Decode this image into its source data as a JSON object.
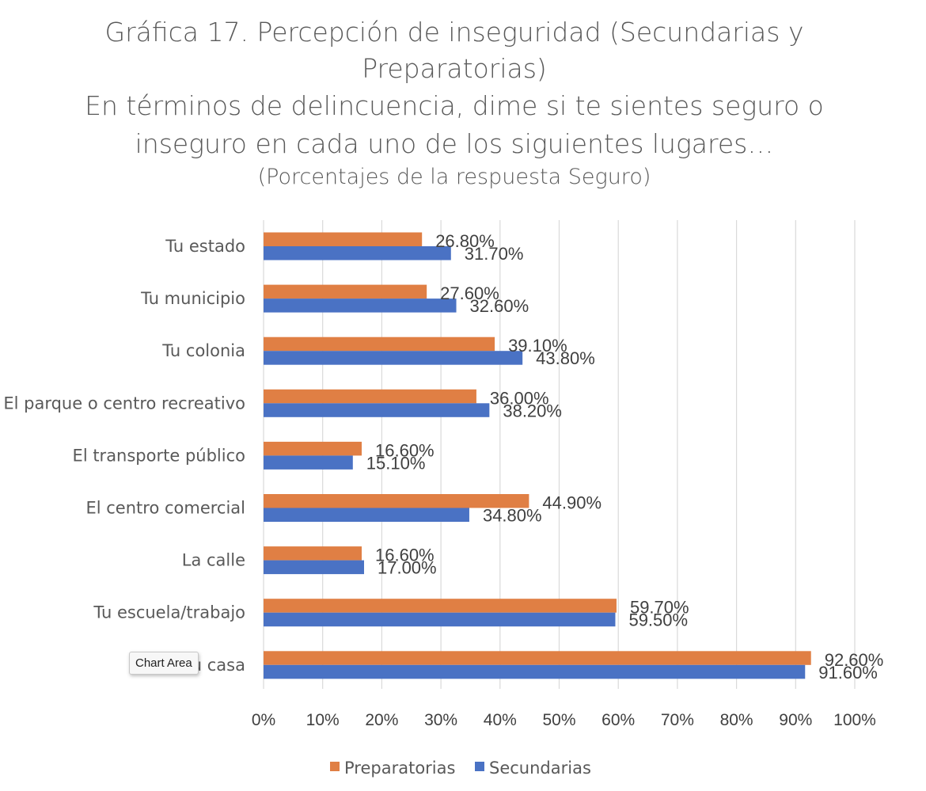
{
  "chart_data": {
    "type": "bar",
    "orientation": "horizontal",
    "title": [
      "Gráfica 17. Percepción de inseguridad (Secundarias y",
      "Preparatorias)",
      "En términos de delincuencia, dime si te sientes seguro o",
      "inseguro en cada uno de los siguientes lugares…"
    ],
    "subtitle": "(Porcentajes de la respuesta Seguro)",
    "categories": [
      "Tu estado",
      "Tu municipio",
      "Tu colonia",
      "El parque o centro recreativo",
      "El transporte público",
      "El centro comercial",
      "La calle",
      "Tu escuela/trabajo",
      "Tu casa"
    ],
    "series": [
      {
        "name": "Preparatorias",
        "color": "#e07f44",
        "values": [
          26.8,
          27.6,
          39.1,
          36.0,
          16.6,
          44.9,
          16.6,
          59.7,
          92.6
        ],
        "labels": [
          "26.80%",
          "27.60%",
          "39.10%",
          "36.00%",
          "16.60%",
          "44.90%",
          "16.60%",
          "59.70%",
          "92.60%"
        ]
      },
      {
        "name": "Secundarias",
        "color": "#4a72c4",
        "values": [
          31.7,
          32.6,
          43.8,
          38.2,
          15.1,
          34.8,
          17.0,
          59.5,
          91.6
        ],
        "labels": [
          "31.70%",
          "32.60%",
          "43.80%",
          "38.20%",
          "15.10%",
          "34.80%",
          "17.00%",
          "59.50%",
          "91.60%"
        ]
      }
    ],
    "xlim": [
      0,
      100
    ],
    "x_ticks": [
      0,
      10,
      20,
      30,
      40,
      50,
      60,
      70,
      80,
      90,
      100
    ],
    "x_tick_labels": [
      "0%",
      "10%",
      "20%",
      "30%",
      "40%",
      "50%",
      "60%",
      "70%",
      "80%",
      "90%",
      "100%"
    ],
    "grid": true,
    "gridline_color": "#d9d9d9",
    "legend_position": "bottom"
  },
  "tooltip": {
    "label": "Chart Area"
  }
}
